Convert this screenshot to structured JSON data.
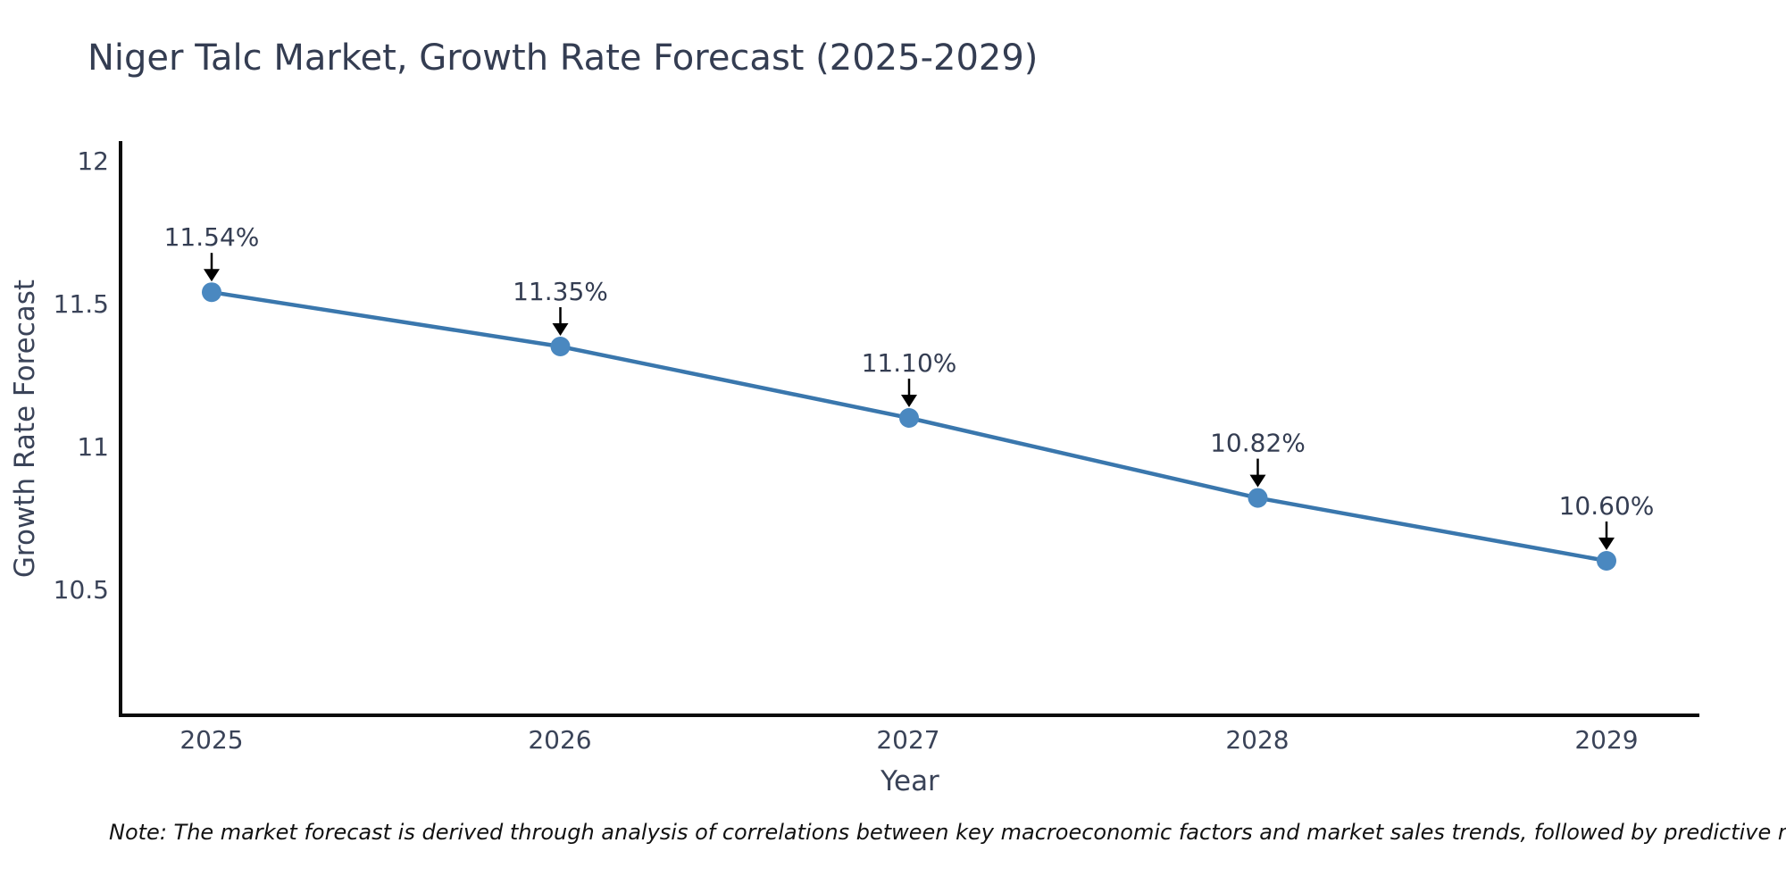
{
  "title": "Niger Talc Market, Growth Rate Forecast (2025-2029)",
  "note": "Note: The market forecast is derived through analysis of correlations between key macroeconomic factors and market sales trends, followed by predictive modeling to project future sales",
  "chart_data": {
    "type": "line",
    "title": "Niger Talc Market, Growth Rate Forecast (2025-2029)",
    "xlabel": "Year",
    "ylabel": "Growth Rate Forecast",
    "x": [
      2025,
      2026,
      2027,
      2028,
      2029
    ],
    "x_tick_labels": [
      "2025",
      "2026",
      "2027",
      "2028",
      "2029"
    ],
    "values": [
      11.54,
      11.35,
      11.1,
      10.82,
      10.6
    ],
    "point_labels": [
      "11.54%",
      "11.35%",
      "11.10%",
      "10.82%",
      "10.60%"
    ],
    "y_ticks": [
      12,
      11.5,
      11,
      10.5
    ],
    "y_tick_labels": [
      "12",
      "11.5",
      "11",
      "10.5"
    ],
    "ylim": [
      10.06,
      12.07
    ],
    "grid": false,
    "legend": false,
    "annotation_style": "value label above each point with black arrow pointing down to marker",
    "colors": {
      "line": "#3a77ad",
      "marker": "#4a88c0",
      "axis": "#0b0b0b",
      "text": "#3a4358",
      "arrow": "#000000",
      "note": "#111111"
    }
  }
}
